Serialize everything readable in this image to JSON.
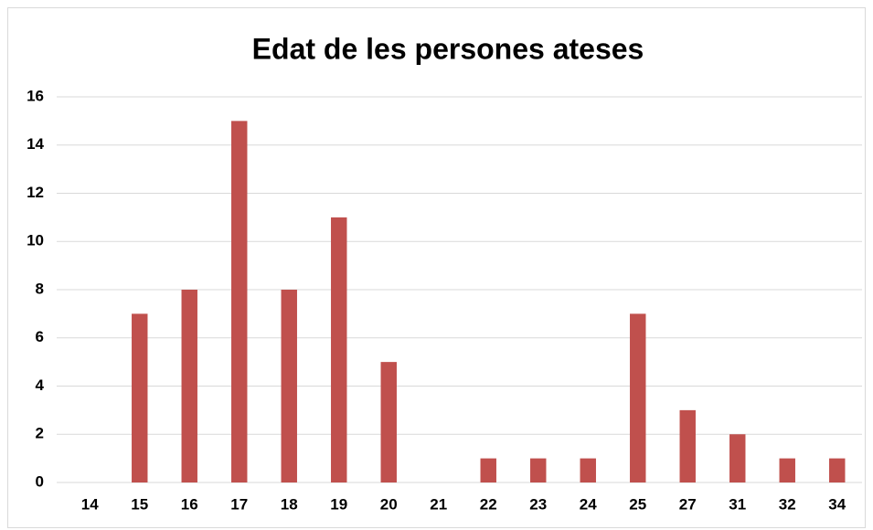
{
  "chart_data": {
    "type": "bar",
    "title": "Edat de les persones ateses",
    "categories": [
      "14",
      "15",
      "16",
      "17",
      "18",
      "19",
      "20",
      "21",
      "22",
      "23",
      "24",
      "25",
      "27",
      "31",
      "32",
      "34"
    ],
    "values": [
      0,
      7,
      8,
      15,
      8,
      11,
      5,
      0,
      1,
      1,
      1,
      7,
      3,
      2,
      1,
      1
    ],
    "color": "#c0504d",
    "ylim": [
      0,
      16
    ],
    "yticks": [
      0,
      2,
      4,
      6,
      8,
      10,
      12,
      14,
      16
    ],
    "grid": true
  }
}
